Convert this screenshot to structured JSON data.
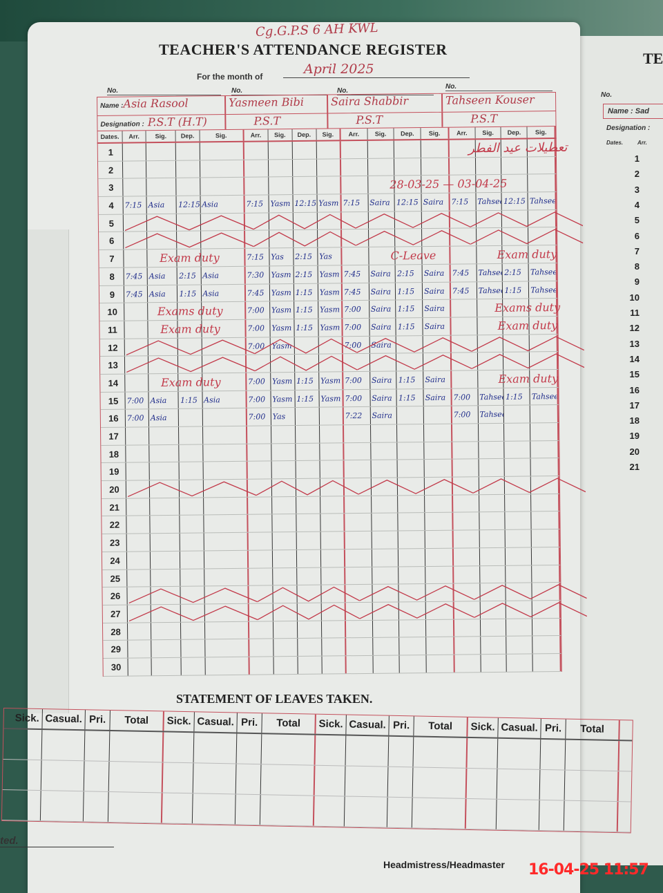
{
  "register": {
    "title": "TEACHER'S ATTENDANCE REGISTER",
    "school_note": "Cg.G.P.S 6 AH   KWL",
    "month_label": "For the month of",
    "month_value": "April 2025",
    "no_label": "No.",
    "name_label": "Name :",
    "designation_label": "Designation :",
    "dates_label": "Dates.",
    "sub_headers": [
      "Arr.",
      "Sig.",
      "Dep.",
      "Sig."
    ],
    "teachers": [
      {
        "name": "Asia Rasool",
        "designation": "P.S.T (H.T)"
      },
      {
        "name": "Yasmeen Bibi",
        "designation": "P.S.T"
      },
      {
        "name": "Saira Shabbir",
        "designation": "P.S.T"
      },
      {
        "name": "Tahseen Kouser",
        "designation": "P.S.T"
      }
    ],
    "notes": {
      "eid_holidays": "تعطیلات عید الفطر",
      "holiday_range": "28-03-25 — 03-04-25"
    },
    "rows": [
      {
        "date": "1",
        "cells": [
          null,
          null,
          null,
          null
        ]
      },
      {
        "date": "2",
        "cells": [
          null,
          null,
          null,
          null
        ]
      },
      {
        "date": "3",
        "cells": [
          null,
          null,
          null,
          null
        ]
      },
      {
        "date": "4",
        "cells": [
          [
            "7:15",
            "Asia",
            "12:15",
            "Asia"
          ],
          [
            "7:15",
            "Yasm",
            "12:15",
            "Yasm"
          ],
          [
            "7:15",
            "Saira",
            "12:15",
            "Saira"
          ],
          [
            "7:15",
            "Tahseen",
            "12:15",
            "Tahseen"
          ]
        ]
      },
      {
        "date": "5",
        "cells": [
          "holiday",
          "holiday",
          "holiday",
          "holiday"
        ]
      },
      {
        "date": "6",
        "cells": [
          "holiday",
          "holiday",
          "holiday",
          "holiday"
        ]
      },
      {
        "date": "7",
        "cells": [
          {
            "note": "Exam duty"
          },
          [
            "7:15",
            "Yas",
            "2:15",
            "Yas"
          ],
          {
            "note": "C-Leave"
          },
          {
            "note": "Exam duty"
          }
        ]
      },
      {
        "date": "8",
        "cells": [
          [
            "7:45",
            "Asia",
            "2:15",
            "Asia"
          ],
          [
            "7:30",
            "Yasm",
            "2:15",
            "Yasm"
          ],
          [
            "7:45",
            "Saira",
            "2:15",
            "Saira"
          ],
          [
            "7:45",
            "Tahseen",
            "2:15",
            "Tahseen"
          ]
        ]
      },
      {
        "date": "9",
        "cells": [
          [
            "7:45",
            "Asia",
            "1:15",
            "Asia"
          ],
          [
            "7:45",
            "Yasm",
            "1:15",
            "Yasm"
          ],
          [
            "7:45",
            "Saira",
            "1:15",
            "Saira"
          ],
          [
            "7:45",
            "Tahseen",
            "1:15",
            "Tahseen"
          ]
        ]
      },
      {
        "date": "10",
        "cells": [
          {
            "note": "Exams duty"
          },
          [
            "7:00",
            "Yasm",
            "1:15",
            "Yasm"
          ],
          [
            "7:00",
            "Saira",
            "1:15",
            "Saira"
          ],
          {
            "note": "Exams duty"
          }
        ]
      },
      {
        "date": "11",
        "cells": [
          {
            "note": "Exam duty"
          },
          [
            "7:00",
            "Yasm",
            "1:15",
            "Yasm"
          ],
          [
            "7:00",
            "Saira",
            "1:15",
            "Saira"
          ],
          {
            "note": "Exam duty"
          }
        ]
      },
      {
        "date": "12",
        "cells": [
          "holiday",
          [
            "7:00",
            "Yasm",
            "",
            ""
          ],
          [
            "7:00",
            "Saira",
            "",
            ""
          ],
          "holiday"
        ]
      },
      {
        "date": "13",
        "cells": [
          "holiday",
          "holiday",
          "holiday",
          "holiday"
        ]
      },
      {
        "date": "14",
        "cells": [
          {
            "note": "Exam duty"
          },
          [
            "7:00",
            "Yasm",
            "1:15",
            "Yasm"
          ],
          [
            "7:00",
            "Saira",
            "1:15",
            "Saira"
          ],
          {
            "note": "Exam duty"
          }
        ]
      },
      {
        "date": "15",
        "cells": [
          [
            "7:00",
            "Asia",
            "1:15",
            "Asia"
          ],
          [
            "7:00",
            "Yasm",
            "1:15",
            "Yasm"
          ],
          [
            "7:00",
            "Saira",
            "1:15",
            "Saira"
          ],
          [
            "7:00",
            "Tahseen",
            "1:15",
            "Tahseen"
          ]
        ]
      },
      {
        "date": "16",
        "cells": [
          [
            "7:00",
            "Asia",
            "",
            ""
          ],
          [
            "7:00",
            "Yas",
            "",
            ""
          ],
          [
            "7:22",
            "Saira",
            "",
            ""
          ],
          [
            "7:00",
            "Tahseen",
            "",
            ""
          ]
        ]
      },
      {
        "date": "17",
        "cells": [
          null,
          null,
          null,
          null
        ]
      },
      {
        "date": "18",
        "cells": [
          null,
          null,
          null,
          null
        ]
      },
      {
        "date": "19",
        "cells": [
          null,
          null,
          null,
          null
        ]
      },
      {
        "date": "20",
        "cells": [
          "holiday",
          "holiday",
          "holiday",
          "holiday"
        ]
      },
      {
        "date": "21",
        "cells": [
          null,
          null,
          null,
          null
        ]
      },
      {
        "date": "22",
        "cells": [
          null,
          null,
          null,
          null
        ]
      },
      {
        "date": "23",
        "cells": [
          null,
          null,
          null,
          null
        ]
      },
      {
        "date": "24",
        "cells": [
          null,
          null,
          null,
          null
        ]
      },
      {
        "date": "25",
        "cells": [
          null,
          null,
          null,
          null
        ]
      },
      {
        "date": "26",
        "cells": [
          "holiday",
          "holiday",
          "holiday",
          "holiday"
        ]
      },
      {
        "date": "27",
        "cells": [
          "holiday",
          "holiday",
          "holiday",
          "holiday"
        ]
      },
      {
        "date": "28",
        "cells": [
          null,
          null,
          null,
          null
        ]
      },
      {
        "date": "29",
        "cells": [
          null,
          null,
          null,
          null
        ]
      },
      {
        "date": "30",
        "cells": [
          null,
          null,
          null,
          null
        ]
      }
    ]
  },
  "leaves": {
    "title": "STATEMENT OF LEAVES TAKEN.",
    "headers": [
      "Sick.",
      "Casual.",
      "Pri.",
      "Total"
    ],
    "groups": 4,
    "empty_rows": 3
  },
  "footer": {
    "attested_label": "ted.",
    "signature_label": "Headmistress/Headmaster",
    "camera_timestamp": "16-04-25 11:57"
  },
  "right_page": {
    "title": "TE",
    "no_label": "No.",
    "name_label": "Name : Sad",
    "designation_label": "Designation :",
    "dates_label": "Dates.",
    "arr_label": "Arr.",
    "dates": [
      "1",
      "2",
      "3",
      "4",
      "5",
      "6",
      "7",
      "8",
      "9",
      "10",
      "11",
      "12",
      "13",
      "14",
      "15",
      "16",
      "17",
      "18",
      "19",
      "20",
      "21"
    ]
  },
  "colors": {
    "red_ink": "#c23a4a",
    "blue_ink": "#1f2c8a",
    "rule_red": "#c4505c",
    "stamp": "#ff2a2a"
  }
}
